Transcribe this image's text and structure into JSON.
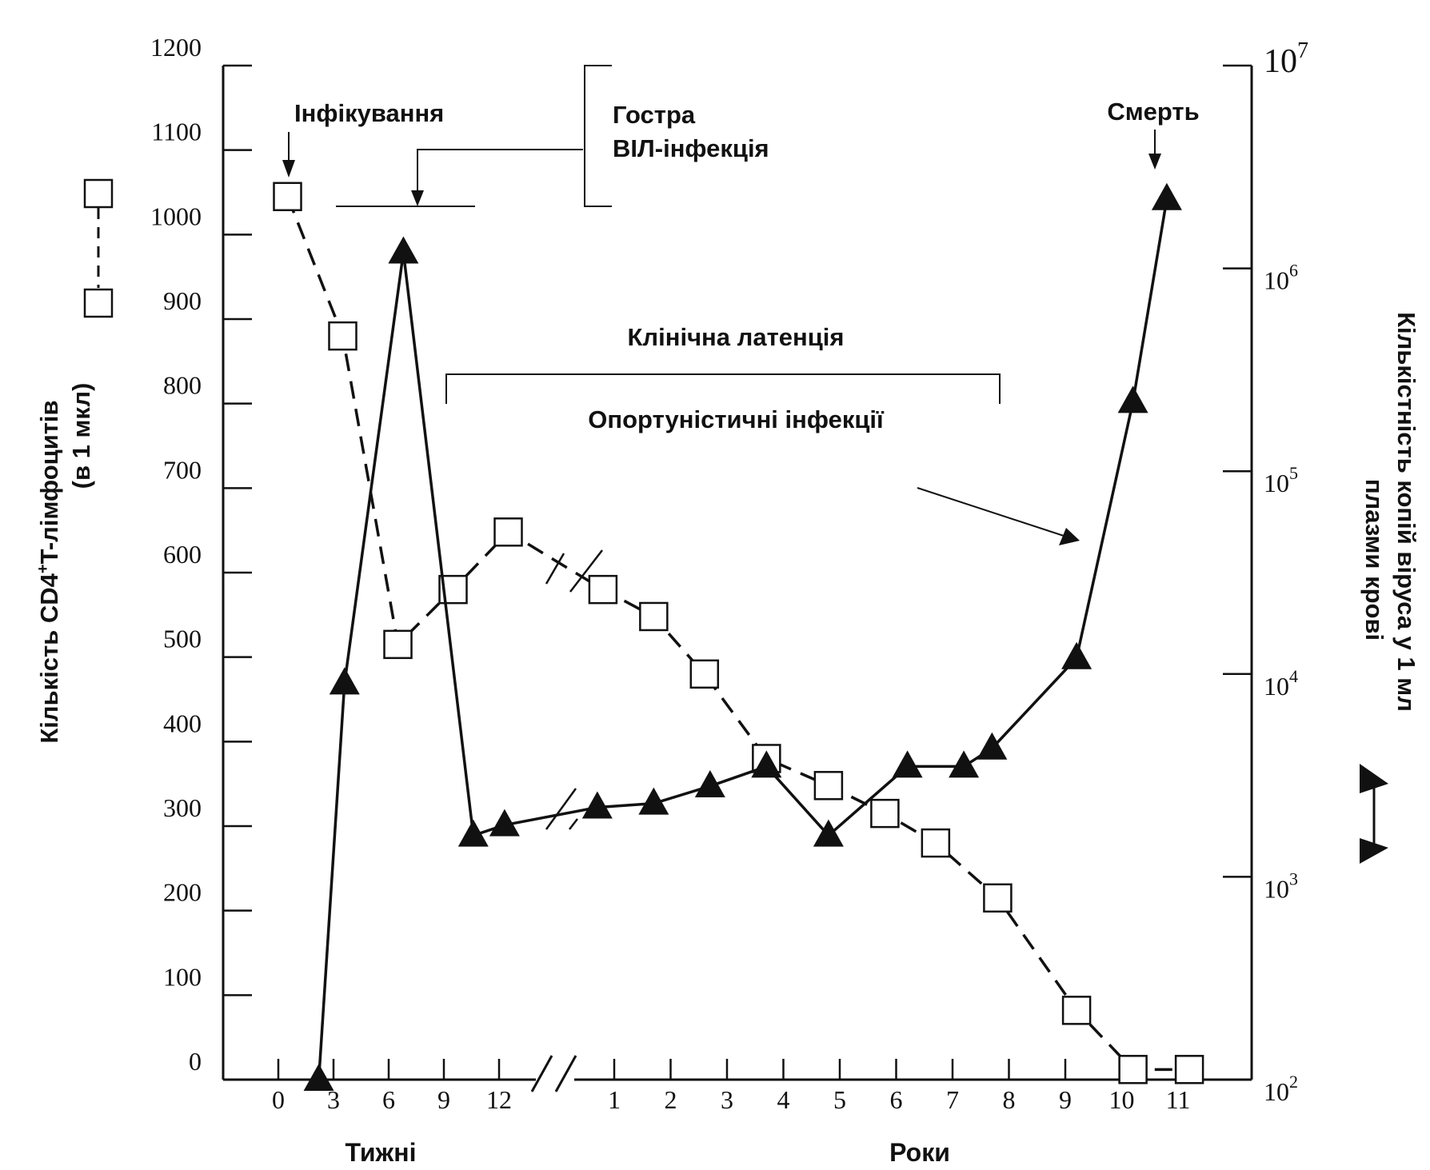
{
  "chart_data": {
    "type": "line",
    "x_axis": {
      "weeks_label": "Тижні",
      "years_label": "Роки",
      "weeks_ticks": [
        "0",
        "3",
        "6",
        "9",
        "12"
      ],
      "years_ticks": [
        "1",
        "2",
        "3",
        "4",
        "5",
        "6",
        "7",
        "8",
        "9",
        "10",
        "11"
      ]
    },
    "y_left": {
      "label_line1": "Кількість CD4",
      "label_sup": "+",
      "label_line1_end": "T-лімфоцитів",
      "label_line2": "(в 1 мкл)",
      "ylim": [
        0,
        1200
      ],
      "ticks": [
        "0",
        "100",
        "200",
        "300",
        "400",
        "500",
        "600",
        "700",
        "800",
        "900",
        "1000",
        "1100",
        "1200"
      ]
    },
    "y_right": {
      "label_line1": "Кількістність копій віруса у 1 мл",
      "label_line2": "плазми крові",
      "scale": "log",
      "ylim": [
        100,
        10000000
      ],
      "ticks": [
        {
          "base": "10",
          "exp": "2"
        },
        {
          "base": "10",
          "exp": "3"
        },
        {
          "base": "10",
          "exp": "4"
        },
        {
          "base": "10",
          "exp": "5"
        },
        {
          "base": "10",
          "exp": "6"
        },
        {
          "base": "10",
          "exp": "7"
        }
      ]
    },
    "series": [
      {
        "marker": "square",
        "line_style": "dashed",
        "axis": "left",
        "points": [
          {
            "period": "weeks",
            "x": 0.5,
            "y": 1045
          },
          {
            "period": "weeks",
            "x": 3.5,
            "y": 880
          },
          {
            "period": "weeks",
            "x": 6.5,
            "y": 515
          },
          {
            "period": "weeks",
            "x": 9.5,
            "y": 580
          },
          {
            "period": "weeks",
            "x": 12.5,
            "y": 648
          },
          {
            "period": "years",
            "x": 0.8,
            "y": 580
          },
          {
            "period": "years",
            "x": 1.7,
            "y": 548
          },
          {
            "period": "years",
            "x": 2.6,
            "y": 480
          },
          {
            "period": "years",
            "x": 3.7,
            "y": 380
          },
          {
            "period": "years",
            "x": 4.8,
            "y": 348
          },
          {
            "period": "years",
            "x": 5.8,
            "y": 315
          },
          {
            "period": "years",
            "x": 6.7,
            "y": 280
          },
          {
            "period": "years",
            "x": 7.8,
            "y": 215
          },
          {
            "period": "years",
            "x": 9.2,
            "y": 82
          },
          {
            "period": "years",
            "x": 10.2,
            "y": 12
          },
          {
            "period": "years",
            "x": 11.2,
            "y": 12
          }
        ]
      },
      {
        "marker": "triangle",
        "line_style": "solid",
        "axis": "right",
        "points": [
          {
            "period": "weeks",
            "x": 2.2,
            "y": 100
          },
          {
            "period": "weeks",
            "x": 3.6,
            "y": 9000
          },
          {
            "period": "weeks",
            "x": 6.8,
            "y": 1200000
          },
          {
            "period": "weeks",
            "x": 10.6,
            "y": 1600
          },
          {
            "period": "weeks",
            "x": 12.3,
            "y": 1800
          },
          {
            "period": "years",
            "x": 0.7,
            "y": 2200
          },
          {
            "period": "years",
            "x": 1.7,
            "y": 2300
          },
          {
            "period": "years",
            "x": 2.7,
            "y": 2800
          },
          {
            "period": "years",
            "x": 3.7,
            "y": 3500
          },
          {
            "period": "years",
            "x": 4.8,
            "y": 1600
          },
          {
            "period": "years",
            "x": 6.2,
            "y": 3500
          },
          {
            "period": "years",
            "x": 7.2,
            "y": 3500
          },
          {
            "period": "years",
            "x": 7.7,
            "y": 4300
          },
          {
            "period": "years",
            "x": 9.2,
            "y": 12000
          },
          {
            "period": "years",
            "x": 10.2,
            "y": 220000
          },
          {
            "period": "years",
            "x": 10.8,
            "y": 2200000
          }
        ]
      }
    ],
    "annotations": {
      "infection": "Інфікування",
      "acute": "Гостра",
      "acute_line2": "ВІЛ-інфекція",
      "latency": "Клінічна латенція",
      "opportunistic": "Опортуністичні інфекції",
      "death": "Смерть"
    }
  }
}
